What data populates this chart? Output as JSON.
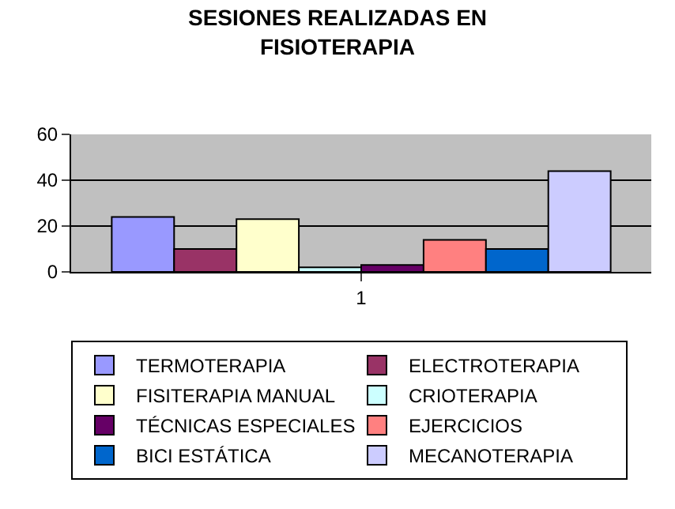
{
  "chart_data": {
    "type": "bar",
    "title": "SESIONES REALIZADAS EN\nFISIOTERAPIA",
    "categories": [
      "1"
    ],
    "series": [
      {
        "name": "TERMOTERAPIA",
        "color": "#9999ff",
        "values": [
          24
        ]
      },
      {
        "name": "ELECTROTERAPIA",
        "color": "#993366",
        "values": [
          10
        ]
      },
      {
        "name": "FISITERAPIA MANUAL",
        "color": "#ffffcc",
        "values": [
          23
        ]
      },
      {
        "name": "CRIOTERAPIA",
        "color": "#ccffff",
        "values": [
          2
        ]
      },
      {
        "name": "TÉCNICAS ESPECIALES",
        "color": "#660066",
        "values": [
          3
        ]
      },
      {
        "name": "EJERCICIOS",
        "color": "#ff8080",
        "values": [
          14
        ]
      },
      {
        "name": "BICI ESTÁTICA",
        "color": "#0066cc",
        "values": [
          10
        ]
      },
      {
        "name": "MECANOTERAPIA",
        "color": "#ccccff",
        "values": [
          44
        ]
      }
    ],
    "ylim": [
      0,
      60
    ],
    "yticks": [
      0,
      20,
      40,
      60
    ],
    "grid": "y",
    "legend": "bottom"
  }
}
